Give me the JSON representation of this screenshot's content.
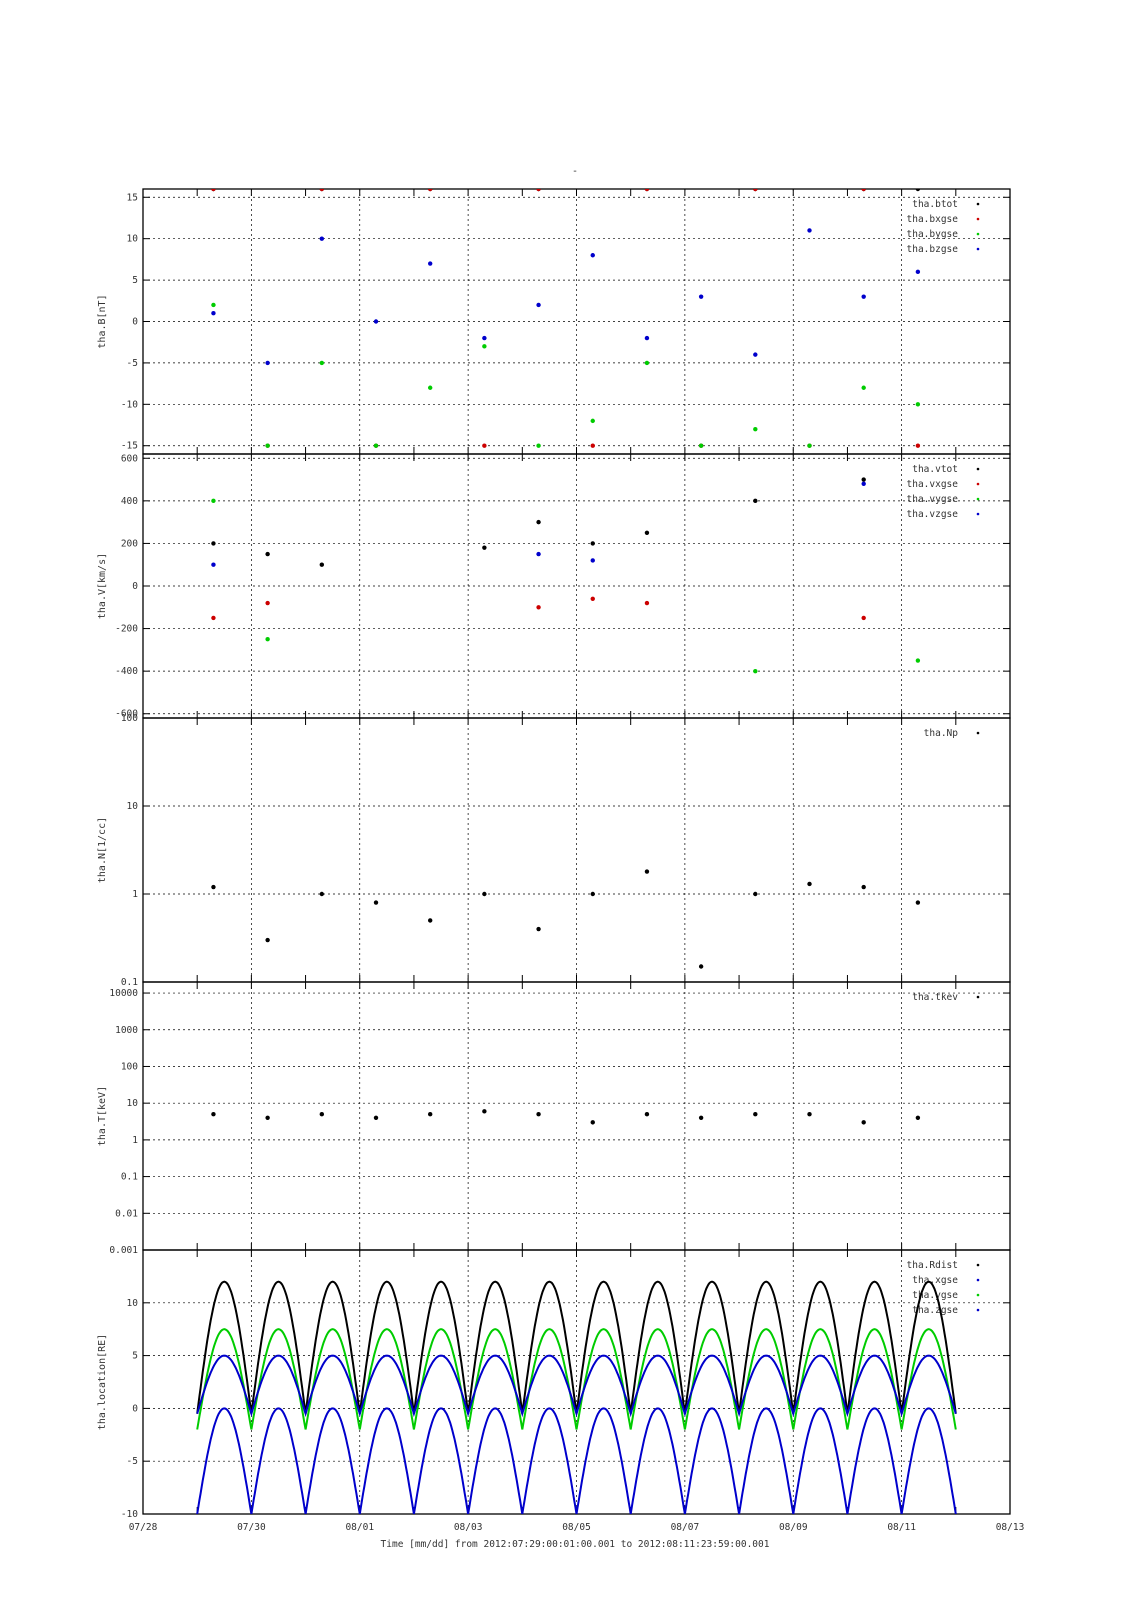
{
  "page_title": "-",
  "x_axis": {
    "tick_labels": [
      "07/28",
      "07/30",
      "08/01",
      "08/03",
      "08/05",
      "08/07",
      "08/09",
      "08/11",
      "08/13"
    ],
    "tick_values": [
      "2012-07-28",
      "2012-07-30",
      "2012-08-01",
      "2012-08-03",
      "2012-08-05",
      "2012-08-07",
      "2012-08-09",
      "2012-08-11",
      "2012-08-13"
    ],
    "range": [
      "2012-07-28",
      "2012-08-13"
    ],
    "label": "Time [mm/dd]  from 2012:07:29:00:01:00.001  to  2012:08:11:23:59:00.001"
  },
  "colors": {
    "black": "#000000",
    "red": "#cc0000",
    "green": "#00cc00",
    "blue": "#0000cc",
    "grid": "#000000",
    "frame": "#000000"
  },
  "chart_data": [
    {
      "type": "scatter",
      "ylabel": "tha.B[nT]",
      "ylim": [
        -16,
        16
      ],
      "yticks": [
        -15,
        -10,
        -5,
        0,
        5,
        10,
        15
      ],
      "ytick_labels": [
        "-15",
        "-10",
        "-5",
        "0",
        "5",
        "10",
        "15"
      ],
      "log": false,
      "grid": true,
      "legend_position": "top-right",
      "series": [
        {
          "name": "tha.btot",
          "color": "#000000",
          "x": [
            "2012-07-29",
            "2012-07-31",
            "2012-08-02",
            "2012-08-04",
            "2012-08-06",
            "2012-08-08",
            "2012-08-10",
            "2012-08-11"
          ],
          "values": [
            16,
            16,
            16,
            16,
            16,
            16,
            16,
            16
          ]
        },
        {
          "name": "tha.bxgse",
          "color": "#cc0000",
          "x": [
            "2012-07-29",
            "2012-07-30",
            "2012-07-31",
            "2012-08-01",
            "2012-08-02",
            "2012-08-03",
            "2012-08-04",
            "2012-08-05",
            "2012-08-06",
            "2012-08-07",
            "2012-08-08",
            "2012-08-09",
            "2012-08-10",
            "2012-08-11"
          ],
          "values": [
            16,
            -15,
            16,
            -15,
            16,
            -15,
            16,
            -15,
            16,
            -15,
            16,
            -15,
            16,
            -15
          ]
        },
        {
          "name": "tha.bygse",
          "color": "#00cc00",
          "x": [
            "2012-07-29",
            "2012-07-30",
            "2012-07-31",
            "2012-08-01",
            "2012-08-02",
            "2012-08-03",
            "2012-08-04",
            "2012-08-05",
            "2012-08-06",
            "2012-08-07",
            "2012-08-08",
            "2012-08-09",
            "2012-08-10",
            "2012-08-11"
          ],
          "values": [
            2,
            -15,
            -5,
            -15,
            -8,
            -3,
            -15,
            -12,
            -5,
            -15,
            -13,
            -15,
            -8,
            -10
          ]
        },
        {
          "name": "tha.bzgse",
          "color": "#0000cc",
          "x": [
            "2012-07-29",
            "2012-07-30",
            "2012-07-31",
            "2012-08-01",
            "2012-08-02",
            "2012-08-03",
            "2012-08-04",
            "2012-08-05",
            "2012-08-06",
            "2012-08-07",
            "2012-08-08",
            "2012-08-09",
            "2012-08-10",
            "2012-08-11"
          ],
          "values": [
            1,
            -5,
            10,
            0,
            7,
            -2,
            2,
            8,
            -2,
            3,
            -4,
            11,
            3,
            6
          ]
        }
      ]
    },
    {
      "type": "scatter",
      "ylabel": "tha.V[km/s]",
      "ylim": [
        -620,
        620
      ],
      "yticks": [
        -600,
        -400,
        -200,
        0,
        200,
        400,
        600
      ],
      "ytick_labels": [
        "-600",
        "-400",
        "-200",
        "0",
        "200",
        "400",
        "600"
      ],
      "log": false,
      "grid": true,
      "legend_position": "top-right",
      "series": [
        {
          "name": "tha.vtot",
          "color": "#000000",
          "x": [
            "2012-07-29",
            "2012-07-30",
            "2012-07-31",
            "2012-08-03",
            "2012-08-04",
            "2012-08-05",
            "2012-08-06",
            "2012-08-08",
            "2012-08-10"
          ],
          "values": [
            200,
            150,
            100,
            180,
            300,
            200,
            250,
            400,
            500
          ]
        },
        {
          "name": "tha.vxgse",
          "color": "#cc0000",
          "x": [
            "2012-07-29",
            "2012-07-30",
            "2012-08-04",
            "2012-08-05",
            "2012-08-06",
            "2012-08-10"
          ],
          "values": [
            -150,
            -80,
            -100,
            -60,
            -80,
            -150
          ]
        },
        {
          "name": "tha.vygse",
          "color": "#00cc00",
          "x": [
            "2012-07-29",
            "2012-07-30",
            "2012-08-08",
            "2012-08-11"
          ],
          "values": [
            400,
            -250,
            -400,
            -350
          ]
        },
        {
          "name": "tha.vzgse",
          "color": "#0000cc",
          "x": [
            "2012-07-29",
            "2012-08-04",
            "2012-08-05",
            "2012-08-10"
          ],
          "values": [
            100,
            150,
            120,
            480
          ]
        }
      ]
    },
    {
      "type": "scatter",
      "ylabel": "tha.N[1/cc]",
      "ylim": [
        0.1,
        100
      ],
      "yticks": [
        0.1,
        1,
        10,
        100
      ],
      "ytick_labels": [
        "0.1",
        "1",
        "10",
        "100"
      ],
      "log": true,
      "grid": true,
      "legend_position": "top-right",
      "series": [
        {
          "name": "tha.Np",
          "color": "#000000",
          "x": [
            "2012-07-29",
            "2012-07-30",
            "2012-07-31",
            "2012-08-01",
            "2012-08-02",
            "2012-08-03",
            "2012-08-04",
            "2012-08-05",
            "2012-08-06",
            "2012-08-07",
            "2012-08-08",
            "2012-08-09",
            "2012-08-10",
            "2012-08-11"
          ],
          "values": [
            1.2,
            0.3,
            1.0,
            0.8,
            0.5,
            1.0,
            0.4,
            1.0,
            1.8,
            0.15,
            1.0,
            1.3,
            1.2,
            0.8
          ]
        }
      ]
    },
    {
      "type": "scatter",
      "ylabel": "tha.T[keV]",
      "ylim": [
        0.001,
        20000
      ],
      "yticks": [
        0.001,
        0.01,
        0.1,
        1,
        10,
        100,
        1000,
        10000
      ],
      "ytick_labels": [
        "0.001",
        "0.01",
        "0.1",
        "1",
        "10",
        "100",
        "1000",
        "10000"
      ],
      "log": true,
      "grid": true,
      "legend_position": "top-right",
      "series": [
        {
          "name": "tha.tkev",
          "color": "#000000",
          "x": [
            "2012-07-29",
            "2012-07-30",
            "2012-07-31",
            "2012-08-01",
            "2012-08-02",
            "2012-08-03",
            "2012-08-04",
            "2012-08-05",
            "2012-08-06",
            "2012-08-07",
            "2012-08-08",
            "2012-08-09",
            "2012-08-10",
            "2012-08-11"
          ],
          "values": [
            5,
            4,
            5,
            4,
            5,
            6,
            5,
            3,
            5,
            4,
            5,
            5,
            3,
            4
          ]
        }
      ]
    },
    {
      "type": "line",
      "ylabel": "tha.location[RE]",
      "ylim": [
        -10,
        15
      ],
      "yticks": [
        -10,
        -5,
        0,
        5,
        10
      ],
      "ytick_labels": [
        "-10",
        "-5",
        "0",
        "5",
        "10"
      ],
      "log": false,
      "grid": true,
      "legend_position": "top-right",
      "orbit_period_days": 1,
      "series": [
        {
          "name": "tha.Rdist",
          "color": "#000000",
          "min": -0.5,
          "max": 12
        },
        {
          "name": "tha.xgse",
          "color": "#0000cc",
          "min": -10,
          "max": 0
        },
        {
          "name": "tha.ygse",
          "color": "#00cc00",
          "min": -2,
          "max": 7.5
        },
        {
          "name": "tha.zgse",
          "color": "#0000cc",
          "min": -0.5,
          "max": 5
        }
      ]
    }
  ]
}
